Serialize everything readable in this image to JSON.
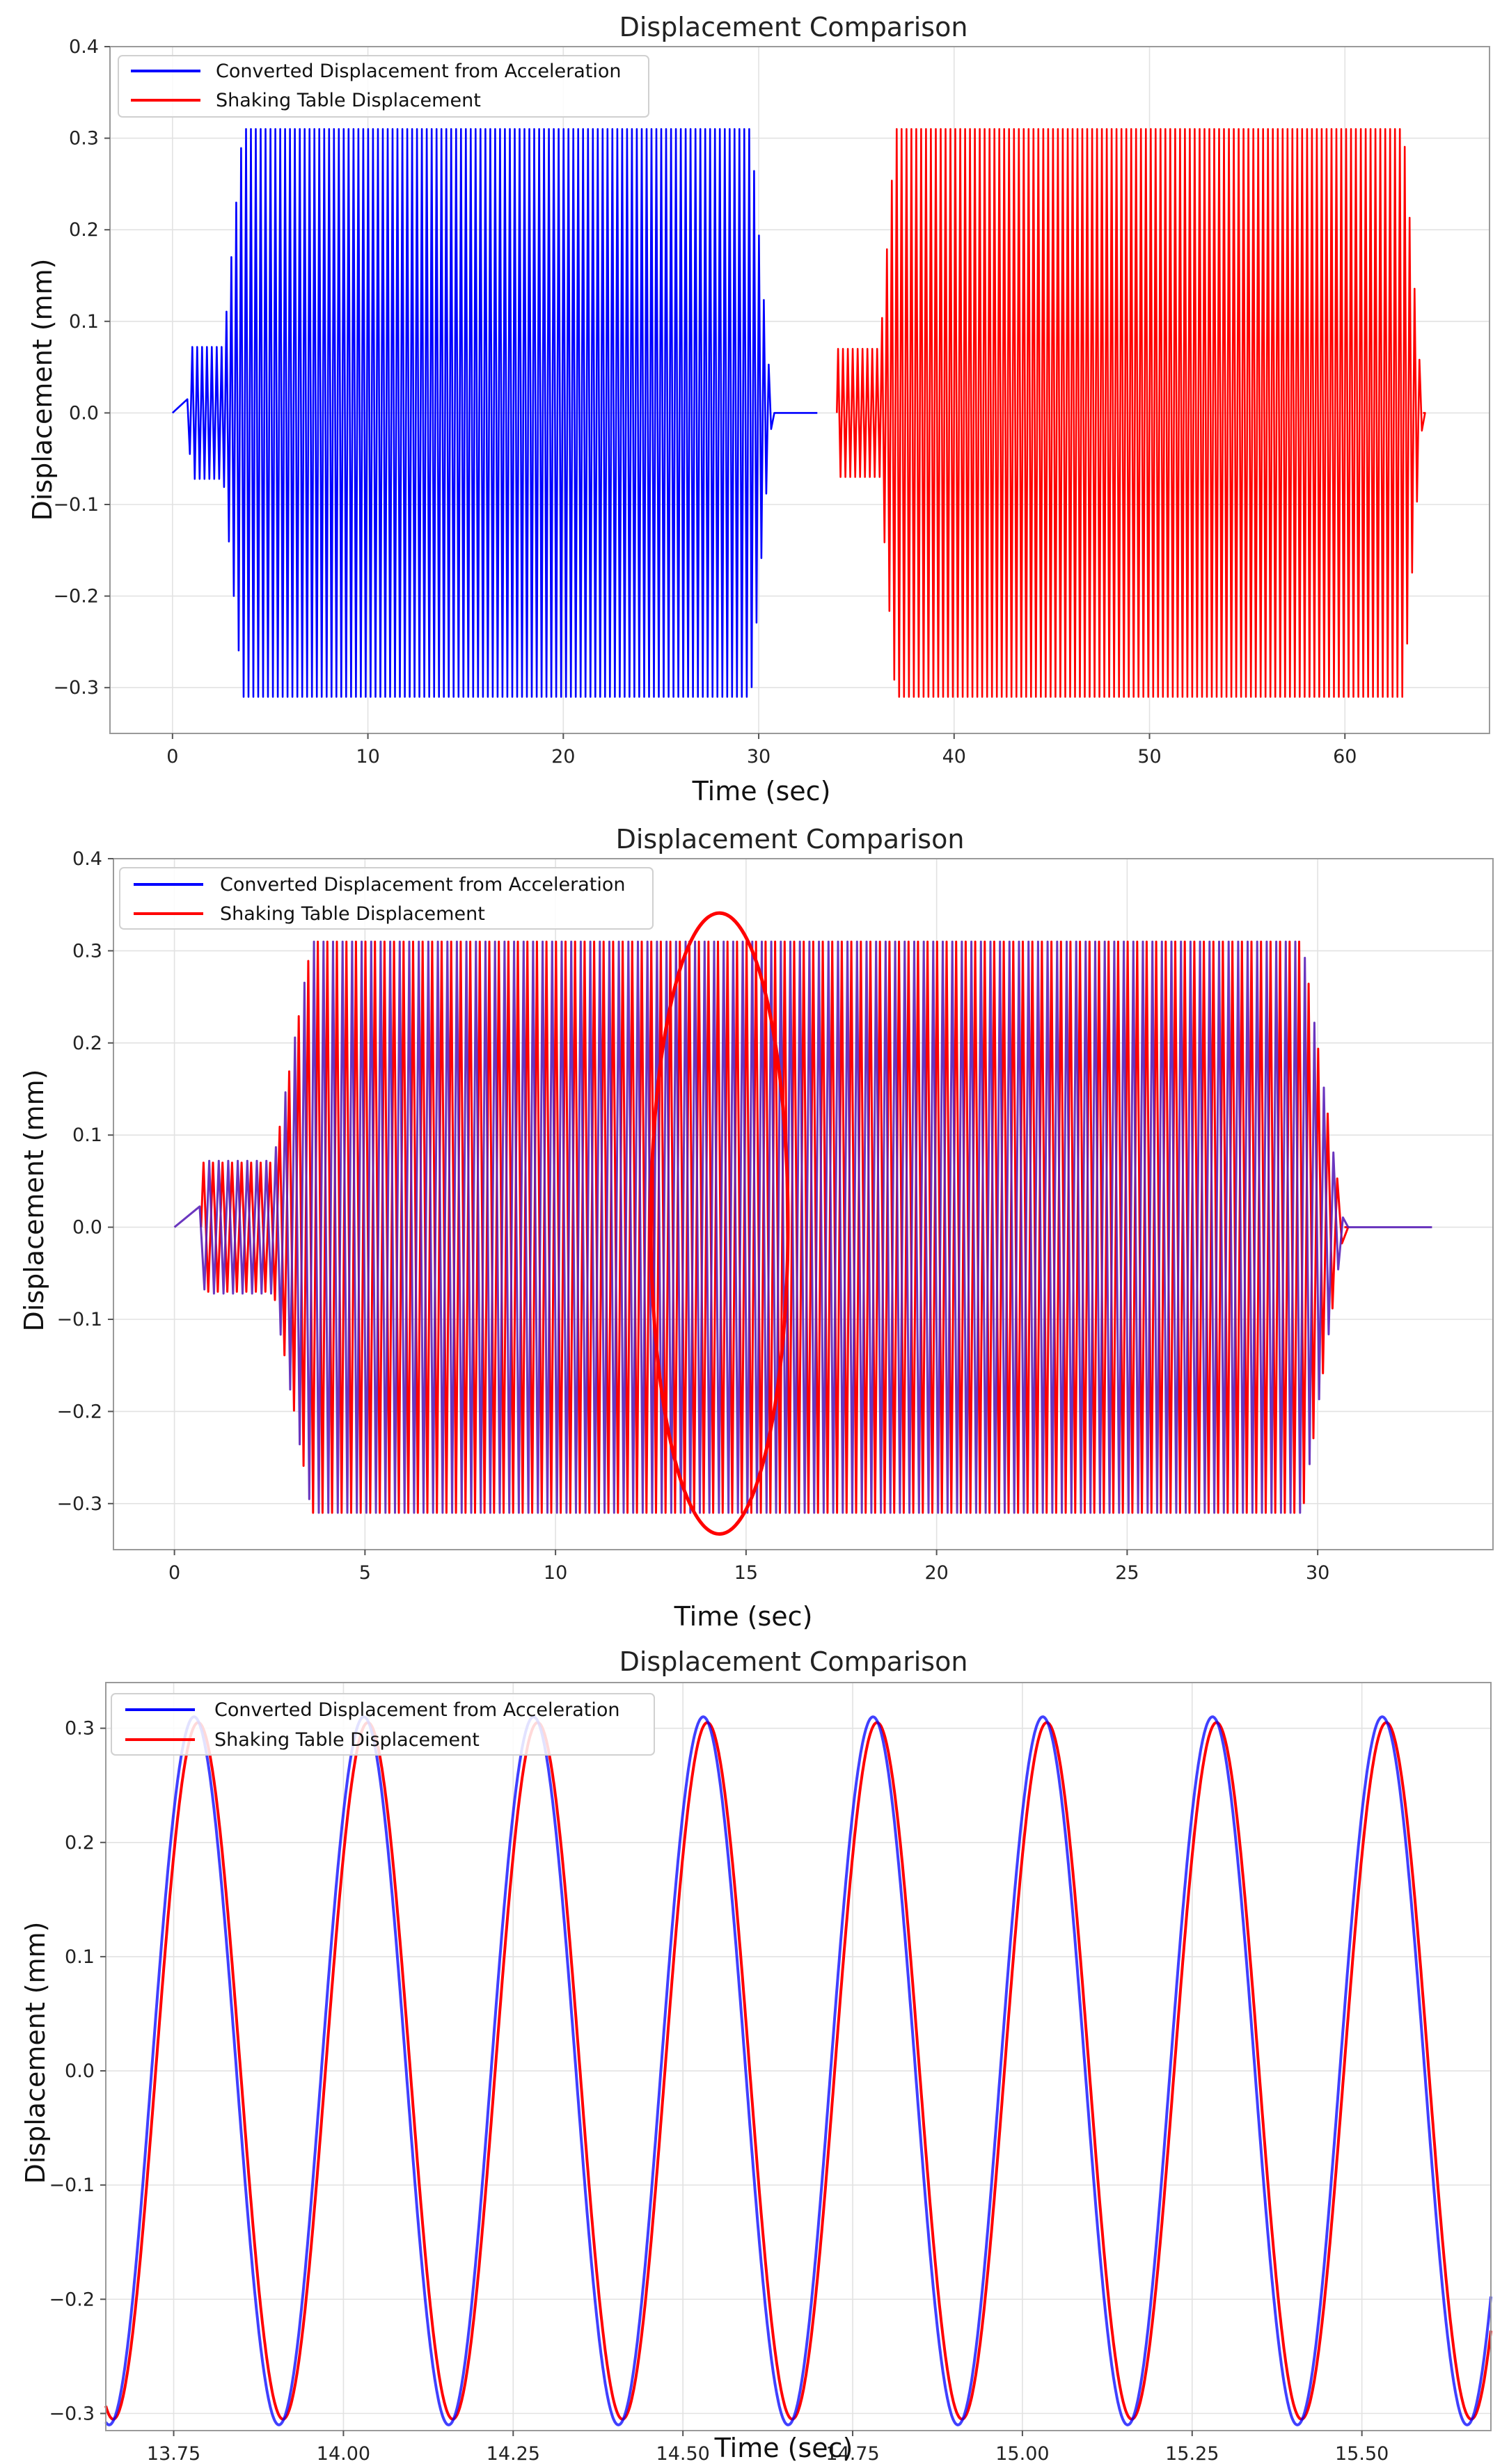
{
  "colors": {
    "converted": "#0000ff",
    "table": "#ff0000",
    "overlap": "#5a20b8"
  },
  "chart_data": [
    {
      "type": "line",
      "title": "Displacement Comparison",
      "xlabel": "Time (sec)",
      "ylabel": "Displacement (mm)",
      "xlim": [
        -3.2,
        67.4
      ],
      "ylim": [
        -0.35,
        0.4
      ],
      "xticks": [
        0,
        10,
        20,
        30,
        40,
        50,
        60
      ],
      "xtick_labels": [
        "0",
        "10",
        "20",
        "30",
        "40",
        "50",
        "60"
      ],
      "yticks": [
        -0.3,
        -0.2,
        -0.1,
        0.0,
        0.1,
        0.2,
        0.3,
        0.4
      ],
      "ytick_labels": [
        "−0.3",
        "−0.2",
        "−0.1",
        "0.0",
        "0.1",
        "0.2",
        "0.3",
        "0.4"
      ],
      "legend": [
        "Converted Displacement from Acceleration",
        "Shaking Table Displacement"
      ],
      "legend_loc": "upper-left",
      "series": [
        {
          "name": "Converted Displacement from Acceleration",
          "color": "#0000ff",
          "t_start": 0.0,
          "t_end": 33.0,
          "freq_hz": 4.0,
          "ramp_start": 0.7,
          "ramp_small_end": 1.0,
          "hold_small_end": 2.6,
          "full_start": 3.6,
          "full_end": 29.6,
          "ramp_end": 30.7,
          "amp_small": 0.072,
          "amp_full": 0.31
        },
        {
          "name": "Shaking Table Displacement",
          "color": "#ff0000",
          "t_start": 34.0,
          "t_end": 64.0,
          "freq_hz": 4.0,
          "ramp_start": 34.0,
          "ramp_small_end": 34.0,
          "hold_small_end": 36.2,
          "full_start": 37.0,
          "full_end": 63.0,
          "ramp_end": 64.0,
          "amp_small": 0.07,
          "amp_full": 0.31
        }
      ]
    },
    {
      "type": "line",
      "title": "Displacement Comparison",
      "xlabel": "Time (sec)",
      "ylabel": "Displacement (mm)",
      "xlim": [
        -1.6,
        34.6
      ],
      "ylim": [
        -0.35,
        0.4
      ],
      "xticks": [
        0,
        5,
        10,
        15,
        20,
        25,
        30
      ],
      "xtick_labels": [
        "0",
        "5",
        "10",
        "15",
        "20",
        "25",
        "30"
      ],
      "yticks": [
        -0.3,
        -0.2,
        -0.1,
        0.0,
        0.1,
        0.2,
        0.3,
        0.4
      ],
      "ytick_labels": [
        "−0.3",
        "−0.2",
        "−0.1",
        "0.0",
        "0.1",
        "0.2",
        "0.3",
        "0.4"
      ],
      "legend": [
        "Converted Displacement from Acceleration",
        "Shaking Table Displacement"
      ],
      "legend_loc": "upper-left",
      "annotation": {
        "shape": "ellipse",
        "color": "#ff0000",
        "center_x": 14.3,
        "center_y": 0.004,
        "half_width_x": 1.8,
        "half_height_y": 0.337
      },
      "series": [
        {
          "name": "Converted Displacement from Acceleration",
          "color": "#0000ff",
          "t_start": 0.0,
          "t_end": 33.0,
          "freq_hz": 4.0,
          "ramp_start": 0.6,
          "ramp_small_end": 0.8,
          "hold_small_end": 2.6,
          "full_start": 3.6,
          "full_end": 29.6,
          "ramp_end": 30.7,
          "amp_small": 0.072,
          "amp_full": 0.31
        },
        {
          "name": "Shaking Table Displacement",
          "color": "#ff0000",
          "t_start": 0.7,
          "t_end": 30.7,
          "freq_hz": 4.0,
          "ramp_start": 0.7,
          "ramp_small_end": 0.7,
          "hold_small_end": 2.6,
          "full_start": 3.6,
          "full_end": 29.6,
          "ramp_end": 30.7,
          "amp_small": 0.07,
          "amp_full": 0.31
        }
      ]
    },
    {
      "type": "line",
      "title": "Displacement Comparison",
      "xlabel": "Time (sec)",
      "ylabel": "Displacement (mm)",
      "xlim": [
        13.65,
        15.69
      ],
      "ylim": [
        -0.315,
        0.34
      ],
      "xticks": [
        13.75,
        14.0,
        14.25,
        14.5,
        14.75,
        15.0,
        15.25,
        15.5
      ],
      "xtick_labels": [
        "13.75",
        "14.00",
        "14.25",
        "14.50",
        "14.75",
        "15.00",
        "15.25",
        "15.50"
      ],
      "yticks": [
        -0.3,
        -0.2,
        -0.1,
        0.0,
        0.1,
        0.2,
        0.3
      ],
      "ytick_labels": [
        "−0.3",
        "−0.2",
        "−0.1",
        "0.0",
        "0.1",
        "0.2",
        "0.3"
      ],
      "legend": [
        "Converted Displacement from Acceleration",
        "Shaking Table Displacement"
      ],
      "legend_loc": "upper-left",
      "series": [
        {
          "name": "Converted Displacement from Acceleration",
          "color": "#0000ff",
          "freq_hz": 4.0,
          "amplitude": 0.31,
          "first_peak_t": 13.7,
          "phase_shift_s": 0.0
        },
        {
          "name": "Shaking Table Displacement",
          "color": "#ff0000",
          "freq_hz": 4.0,
          "amplitude": 0.305,
          "first_peak_t": 13.7,
          "phase_shift_s": 0.006
        }
      ]
    }
  ]
}
